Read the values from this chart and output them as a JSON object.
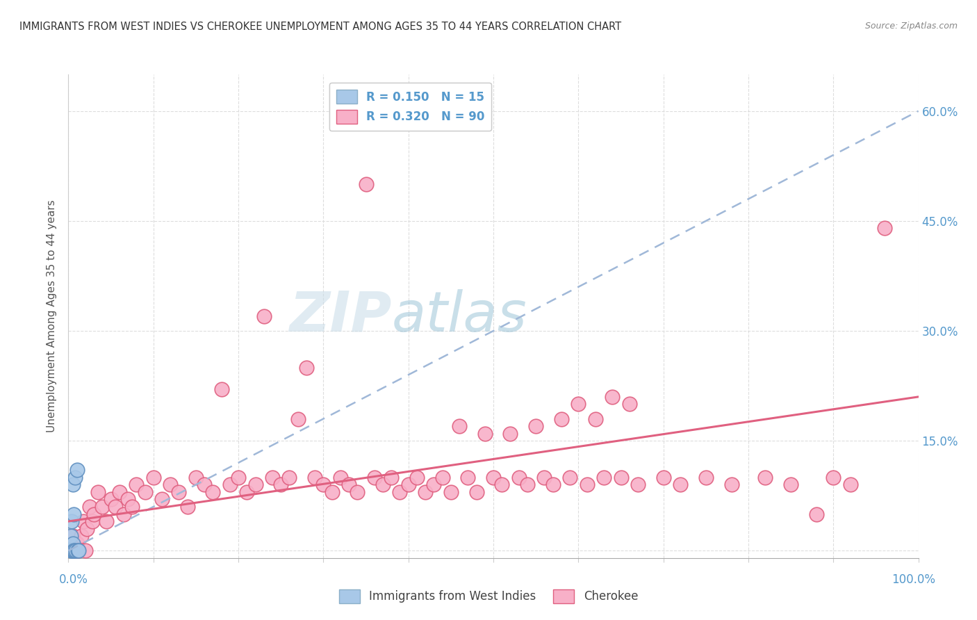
{
  "title": "IMMIGRANTS FROM WEST INDIES VS CHEROKEE UNEMPLOYMENT AMONG AGES 35 TO 44 YEARS CORRELATION CHART",
  "source": "Source: ZipAtlas.com",
  "ylabel": "Unemployment Among Ages 35 to 44 years",
  "xlim": [
    0.0,
    1.0
  ],
  "ylim": [
    -0.01,
    0.65
  ],
  "group1_color": "#a8c8e8",
  "group1_edge_color": "#6090c0",
  "group2_color": "#f8b0c8",
  "group2_edge_color": "#e06080",
  "trend1_color": "#a0b8d8",
  "trend2_color": "#e06080",
  "watermark_zip": "ZIP",
  "watermark_atlas": "atlas",
  "background_color": "#ffffff",
  "grid_color": "#e8e8e8",
  "tick_color": "#5599cc",
  "title_color": "#333333",
  "ylabel_color": "#555555",
  "n1": 15,
  "n2": 90,
  "legend1_label": "R = 0.150   N = 15",
  "legend2_label": "R = 0.320   N = 90",
  "trend1_slope": 0.6,
  "trend1_intercept": 0.0,
  "trend2_slope": 0.17,
  "trend2_intercept": 0.04,
  "west_indies_x": [
    0.003,
    0.003,
    0.004,
    0.004,
    0.005,
    0.005,
    0.005,
    0.006,
    0.006,
    0.007,
    0.008,
    0.009,
    0.01,
    0.011,
    0.012
  ],
  "west_indies_y": [
    0.0,
    0.02,
    0.0,
    0.04,
    0.0,
    0.01,
    0.09,
    0.0,
    0.05,
    0.0,
    0.1,
    0.0,
    0.11,
    0.0,
    0.0
  ],
  "cherokee_x": [
    0.005,
    0.008,
    0.01,
    0.012,
    0.015,
    0.018,
    0.02,
    0.022,
    0.025,
    0.028,
    0.03,
    0.035,
    0.04,
    0.045,
    0.05,
    0.055,
    0.06,
    0.065,
    0.07,
    0.075,
    0.08,
    0.09,
    0.1,
    0.11,
    0.12,
    0.13,
    0.14,
    0.15,
    0.16,
    0.17,
    0.18,
    0.19,
    0.2,
    0.21,
    0.22,
    0.23,
    0.24,
    0.25,
    0.26,
    0.27,
    0.28,
    0.29,
    0.3,
    0.31,
    0.32,
    0.33,
    0.34,
    0.35,
    0.36,
    0.37,
    0.38,
    0.39,
    0.4,
    0.41,
    0.42,
    0.43,
    0.44,
    0.45,
    0.46,
    0.47,
    0.48,
    0.49,
    0.5,
    0.51,
    0.52,
    0.53,
    0.54,
    0.55,
    0.56,
    0.57,
    0.58,
    0.59,
    0.6,
    0.61,
    0.62,
    0.63,
    0.64,
    0.65,
    0.66,
    0.67,
    0.7,
    0.72,
    0.75,
    0.78,
    0.82,
    0.85,
    0.88,
    0.9,
    0.92,
    0.96
  ],
  "cherokee_y": [
    0.02,
    0.0,
    0.01,
    0.0,
    0.02,
    0.04,
    0.0,
    0.03,
    0.06,
    0.04,
    0.05,
    0.08,
    0.06,
    0.04,
    0.07,
    0.06,
    0.08,
    0.05,
    0.07,
    0.06,
    0.09,
    0.08,
    0.1,
    0.07,
    0.09,
    0.08,
    0.06,
    0.1,
    0.09,
    0.08,
    0.22,
    0.09,
    0.1,
    0.08,
    0.09,
    0.32,
    0.1,
    0.09,
    0.1,
    0.18,
    0.25,
    0.1,
    0.09,
    0.08,
    0.1,
    0.09,
    0.08,
    0.5,
    0.1,
    0.09,
    0.1,
    0.08,
    0.09,
    0.1,
    0.08,
    0.09,
    0.1,
    0.08,
    0.17,
    0.1,
    0.08,
    0.16,
    0.1,
    0.09,
    0.16,
    0.1,
    0.09,
    0.17,
    0.1,
    0.09,
    0.18,
    0.1,
    0.2,
    0.09,
    0.18,
    0.1,
    0.21,
    0.1,
    0.2,
    0.09,
    0.1,
    0.09,
    0.1,
    0.09,
    0.1,
    0.09,
    0.05,
    0.1,
    0.09,
    0.44
  ]
}
